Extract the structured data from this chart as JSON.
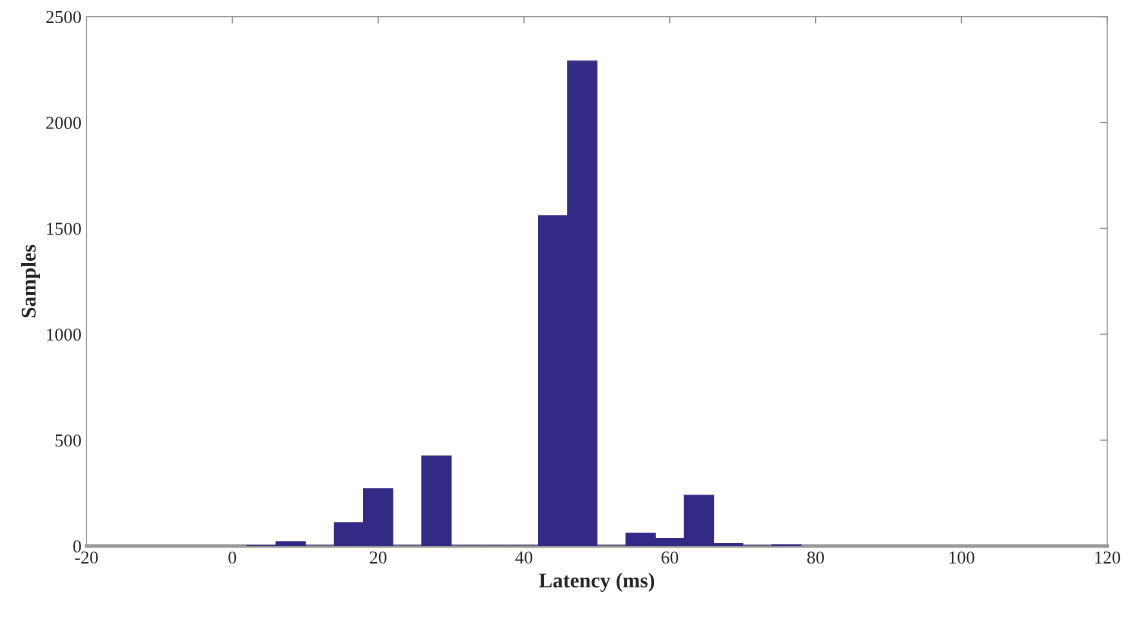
{
  "chart_data": {
    "type": "histogram",
    "xlabel": "Latency (ms)",
    "ylabel": "Samples",
    "bins": [
      2,
      6,
      10,
      14,
      18,
      22,
      26,
      30,
      34,
      38,
      42,
      46,
      50,
      54,
      58,
      62,
      66,
      70,
      74,
      78
    ],
    "values": [
      2,
      20,
      0,
      110,
      270,
      0,
      425,
      0,
      0,
      0,
      1560,
      2290,
      0,
      60,
      35,
      240,
      12,
      0,
      5
    ],
    "color": "#332a86",
    "xlim": [
      -20,
      120
    ],
    "xticks": [
      -20,
      0,
      20,
      40,
      60,
      80,
      100,
      120
    ],
    "ylim": [
      0,
      2500
    ],
    "yticks": [
      0,
      500,
      1000,
      1500,
      2000,
      2500
    ],
    "grid": false
  }
}
